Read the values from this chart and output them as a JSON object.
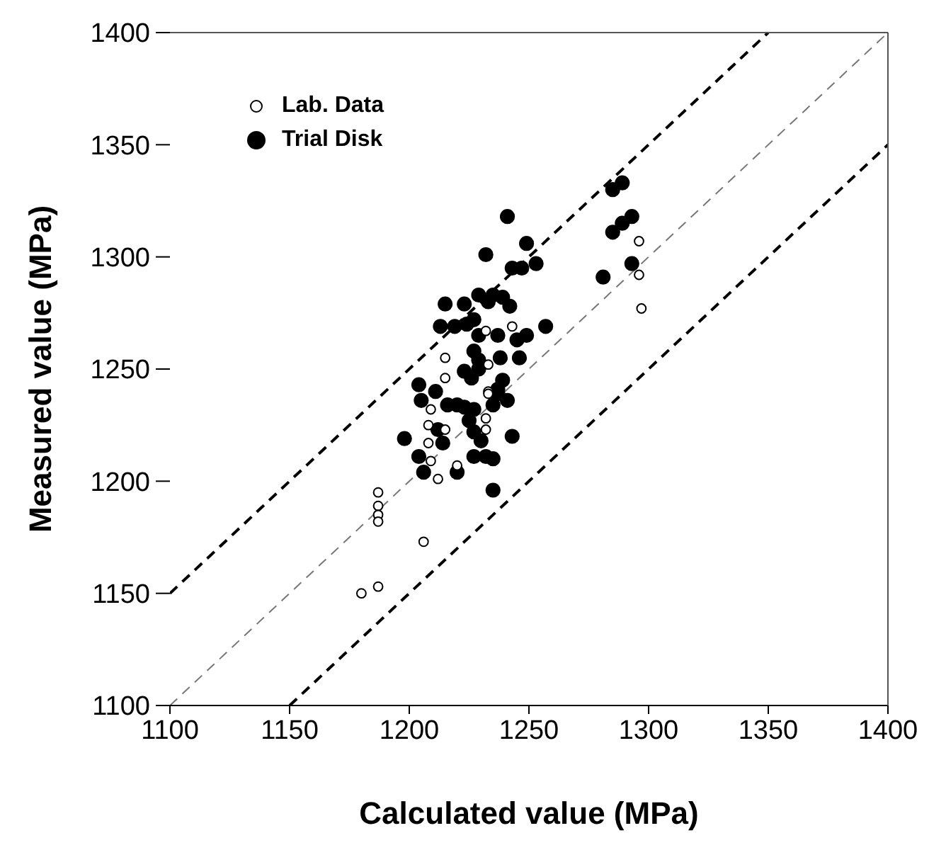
{
  "chart_data": {
    "type": "scatter",
    "xlabel": "Calculated value (MPa)",
    "ylabel": "Measured value (MPa)",
    "xlim": [
      1100,
      1400
    ],
    "ylim": [
      1100,
      1400
    ],
    "xticks": [
      1100,
      1150,
      1200,
      1250,
      1300,
      1350,
      1400
    ],
    "yticks": [
      1100,
      1150,
      1200,
      1250,
      1300,
      1350,
      1400
    ],
    "grid": false,
    "legend": "top left",
    "marker": "circle",
    "series": [
      {
        "name": "Lab. Data",
        "color": "#ffffff",
        "x": [
          1232,
          1243,
          1215,
          1233,
          1215,
          1233,
          1233,
          1209,
          1232,
          1208,
          1215,
          1208,
          1232,
          1209,
          1220,
          1212,
          1187,
          1187,
          1187,
          1187,
          1206,
          1187,
          1180,
          1296,
          1296,
          1297
        ],
        "values": [
          1267,
          1269,
          1255,
          1252,
          1246,
          1240,
          1239,
          1232,
          1228,
          1225,
          1223,
          1217,
          1223,
          1209,
          1207,
          1201,
          1195,
          1189,
          1185,
          1182,
          1173,
          1153,
          1150,
          1307,
          1292,
          1277
        ]
      },
      {
        "name": "Trial Disk",
        "color": "#000000",
        "x": [
          1241,
          1249,
          1232,
          1243,
          1247,
          1253,
          1229,
          1235,
          1239,
          1242,
          1215,
          1223,
          1233,
          1227,
          1213,
          1219,
          1224,
          1229,
          1237,
          1245,
          1249,
          1257,
          1227,
          1238,
          1246,
          1229,
          1229,
          1223,
          1239,
          1204,
          1211,
          1237,
          1205,
          1216,
          1220,
          1223,
          1227,
          1235,
          1237,
          1241,
          1225,
          1227,
          1230,
          1198,
          1212,
          1214,
          1243,
          1204,
          1227,
          1232,
          1235,
          1206,
          1220,
          1235,
          1226,
          1285,
          1289,
          1293,
          1289,
          1285,
          1293,
          1281
        ],
        "values": [
          1318,
          1306,
          1301,
          1295,
          1295,
          1297,
          1283,
          1283,
          1282,
          1278,
          1279,
          1279,
          1280,
          1272,
          1269,
          1269,
          1270,
          1265,
          1265,
          1263,
          1265,
          1269,
          1258,
          1255,
          1255,
          1254,
          1250,
          1249,
          1245,
          1243,
          1240,
          1241,
          1236,
          1234,
          1234,
          1233,
          1232,
          1234,
          1239,
          1236,
          1227,
          1222,
          1218,
          1219,
          1223,
          1217,
          1220,
          1211,
          1211,
          1211,
          1210,
          1204,
          1204,
          1196,
          1246,
          1330,
          1333,
          1318,
          1315,
          1311,
          1297,
          1291
        ]
      },
      {
        "type": "line",
        "color": "#000000",
        "line_style": "dashed",
        "marker": "none",
        "x": [
          1100,
          1350
        ],
        "values": [
          1150,
          1400
        ]
      },
      {
        "type": "line",
        "color": "#777777",
        "line_style": "dashed",
        "marker": "none",
        "x": [
          1100,
          1400
        ],
        "values": [
          1100,
          1400
        ]
      },
      {
        "type": "line",
        "color": "#000000",
        "line_style": "dashed",
        "marker": "none",
        "x": [
          1150,
          1400
        ],
        "values": [
          1100,
          1350
        ]
      }
    ]
  }
}
